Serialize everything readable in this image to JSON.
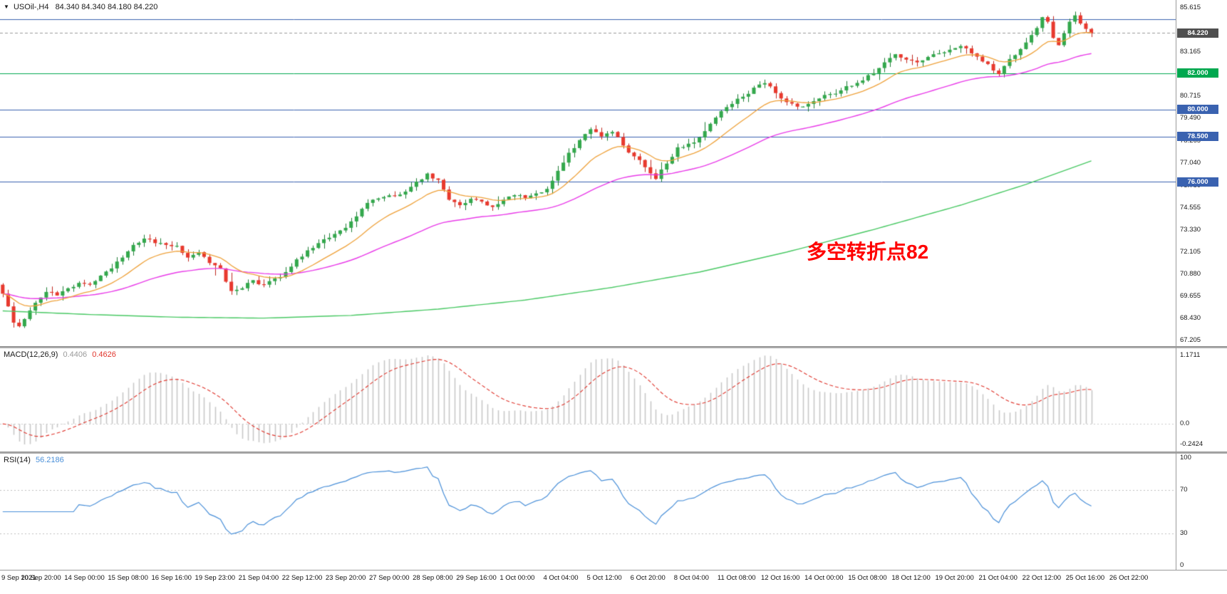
{
  "window": {
    "symbol_label": "USOil-,H4",
    "ohlc_label": "84.340 84.340 84.180 84.220"
  },
  "price_panel": {
    "annotation": {
      "text": "多空转折点82",
      "color": "#FF0000"
    },
    "axis": {
      "p_max": 86.05,
      "p_min": 66.9
    },
    "scale_ticks": [
      {
        "label": "85.615",
        "price": 85.615
      },
      {
        "label": "83.165",
        "price": 83.165
      },
      {
        "label": "80.715",
        "price": 80.715
      },
      {
        "label": "79.490",
        "price": 79.49
      },
      {
        "label": "78.265",
        "price": 78.265
      },
      {
        "label": "77.040",
        "price": 77.04
      },
      {
        "label": "75.780",
        "price": 75.78
      },
      {
        "label": "74.555",
        "price": 74.555
      },
      {
        "label": "73.330",
        "price": 73.33
      },
      {
        "label": "72.105",
        "price": 72.105
      },
      {
        "label": "70.880",
        "price": 70.88
      },
      {
        "label": "69.655",
        "price": 69.655
      },
      {
        "label": "68.430",
        "price": 68.43
      },
      {
        "label": "67.205",
        "price": 67.205
      }
    ],
    "badges": [
      {
        "label": "84.220",
        "price": 84.22,
        "bg": "#4f4f4f"
      },
      {
        "label": "82.000",
        "price": 82.0,
        "bg": "#00A84F"
      },
      {
        "label": "80.000",
        "price": 80.0,
        "bg": "#3A62B0"
      },
      {
        "label": "78.500",
        "price": 78.5,
        "bg": "#3A62B0"
      },
      {
        "label": "76.000",
        "price": 76.0,
        "bg": "#3A62B0"
      }
    ],
    "hlines": [
      {
        "price": 85.0,
        "color": "#3A62B0",
        "style": "solid"
      },
      {
        "price": 84.22,
        "color": "#999999",
        "style": "dash"
      },
      {
        "price": 82.0,
        "color": "#00A84F",
        "style": "solid"
      },
      {
        "price": 80.0,
        "color": "#3A62B0",
        "style": "solid"
      },
      {
        "price": 78.5,
        "color": "#3A62B0",
        "style": "solid"
      },
      {
        "price": 76.0,
        "color": "#3A62B0",
        "style": "solid"
      }
    ]
  },
  "macd_panel": {
    "name": "MACD(12,26,9)",
    "value_main": "0.4406",
    "value_signal": "0.4626",
    "scale_labels": {
      "max": "1.1711",
      "zero": "0.0",
      "min": "-0.2424"
    },
    "colors": {
      "hist": "#c8c8c8",
      "signal": "#e0352c",
      "zero_line": "#cccccc"
    }
  },
  "rsi_panel": {
    "name": "RSI(14)",
    "value": "56.2186",
    "levels": [
      70,
      30
    ],
    "scale_labels": [
      {
        "label": "100",
        "value": 100
      },
      {
        "label": "70",
        "value": 70
      },
      {
        "label": "30",
        "value": 30
      },
      {
        "label": "0",
        "value": 0
      }
    ],
    "colors": {
      "line": "#4a90d9",
      "level_line": "#c0c0c0"
    }
  },
  "time_axis": {
    "slot_step": 8,
    "labels": [
      "9 Sep 2021",
      "10 Sep 20:00",
      "14 Sep 00:00",
      "15 Sep 08:00",
      "16 Sep 16:00",
      "19 Sep 23:00",
      "21 Sep 04:00",
      "22 Sep 12:00",
      "23 Sep 20:00",
      "27 Sep 00:00",
      "28 Sep 08:00",
      "29 Sep 16:00",
      "1 Oct 00:00",
      "4 Oct 04:00",
      "5 Oct 12:00",
      "6 Oct 20:00",
      "8 Oct 04:00",
      "11 Oct 08:00",
      "12 Oct 16:00",
      "14 Oct 00:00",
      "15 Oct 08:00",
      "18 Oct 12:00",
      "19 Oct 20:00",
      "21 Oct 04:00",
      "22 Oct 12:00",
      "25 Oct 16:00",
      "26 Oct 22:00"
    ]
  },
  "chart_data": {
    "type": "candlestick",
    "symbol": "USOil-",
    "timeframe": "H4",
    "title": "USOil-,H4 84.340 84.340 84.180 84.220",
    "current_ohlc": {
      "open": 84.34,
      "high": 84.34,
      "low": 84.18,
      "close": 84.22
    },
    "bars": 201,
    "slots": 216,
    "y_range": [
      67.205,
      85.615
    ],
    "key_levels": [
      76.0,
      78.5,
      80.0,
      82.0,
      85.0
    ],
    "close_anchors": [
      [
        0,
        69.8
      ],
      [
        1,
        69.1
      ],
      [
        2,
        68.2
      ],
      [
        3,
        68.0
      ],
      [
        4,
        68.4
      ],
      [
        6,
        69.3
      ],
      [
        8,
        69.9
      ],
      [
        10,
        69.7
      ],
      [
        12,
        70.1
      ],
      [
        14,
        70.4
      ],
      [
        16,
        70.3
      ],
      [
        18,
        70.8
      ],
      [
        20,
        71.2
      ],
      [
        22,
        71.8
      ],
      [
        24,
        72.5
      ],
      [
        26,
        72.85
      ],
      [
        28,
        72.6
      ],
      [
        30,
        72.5
      ],
      [
        32,
        72.45
      ],
      [
        34,
        71.8
      ],
      [
        36,
        72.1
      ],
      [
        38,
        71.5
      ],
      [
        40,
        71.2
      ],
      [
        42,
        69.95
      ],
      [
        44,
        70.1
      ],
      [
        46,
        70.55
      ],
      [
        48,
        70.3
      ],
      [
        50,
        70.65
      ],
      [
        52,
        71.0
      ],
      [
        54,
        71.7
      ],
      [
        56,
        72.2
      ],
      [
        58,
        72.6
      ],
      [
        60,
        72.9
      ],
      [
        62,
        73.3
      ],
      [
        64,
        73.8
      ],
      [
        66,
        74.5
      ],
      [
        68,
        75.0
      ],
      [
        70,
        75.15
      ],
      [
        72,
        75.2
      ],
      [
        74,
        75.45
      ],
      [
        76,
        76.0
      ],
      [
        78,
        76.45
      ],
      [
        80,
        76.1
      ],
      [
        82,
        75.0
      ],
      [
        84,
        74.7
      ],
      [
        86,
        75.05
      ],
      [
        88,
        74.9
      ],
      [
        90,
        74.6
      ],
      [
        92,
        75.0
      ],
      [
        94,
        75.25
      ],
      [
        96,
        75.1
      ],
      [
        98,
        75.35
      ],
      [
        100,
        75.6
      ],
      [
        102,
        76.6
      ],
      [
        104,
        77.6
      ],
      [
        106,
        78.3
      ],
      [
        108,
        78.9
      ],
      [
        110,
        78.5
      ],
      [
        112,
        78.75
      ],
      [
        114,
        78.0
      ],
      [
        116,
        77.4
      ],
      [
        118,
        76.8
      ],
      [
        120,
        76.15
      ],
      [
        122,
        77.0
      ],
      [
        124,
        77.9
      ],
      [
        126,
        78.1
      ],
      [
        128,
        78.45
      ],
      [
        130,
        79.2
      ],
      [
        132,
        79.9
      ],
      [
        134,
        80.3
      ],
      [
        136,
        80.7
      ],
      [
        138,
        81.2
      ],
      [
        140,
        81.45
      ],
      [
        142,
        80.9
      ],
      [
        144,
        80.4
      ],
      [
        146,
        80.15
      ],
      [
        148,
        80.3
      ],
      [
        150,
        80.6
      ],
      [
        152,
        80.85
      ],
      [
        154,
        81.05
      ],
      [
        156,
        81.3
      ],
      [
        158,
        81.6
      ],
      [
        160,
        82.0
      ],
      [
        162,
        82.6
      ],
      [
        164,
        83.05
      ],
      [
        166,
        82.75
      ],
      [
        168,
        82.6
      ],
      [
        170,
        82.9
      ],
      [
        172,
        83.1
      ],
      [
        174,
        83.3
      ],
      [
        176,
        83.5
      ],
      [
        178,
        83.1
      ],
      [
        180,
        82.65
      ],
      [
        182,
        82.15
      ],
      [
        183,
        81.95
      ],
      [
        184,
        82.4
      ],
      [
        186,
        83.0
      ],
      [
        188,
        83.7
      ],
      [
        190,
        84.5
      ],
      [
        191,
        85.1
      ],
      [
        192,
        84.85
      ],
      [
        193,
        83.95
      ],
      [
        194,
        83.55
      ],
      [
        195,
        84.2
      ],
      [
        196,
        84.85
      ],
      [
        197,
        85.2
      ],
      [
        198,
        84.75
      ],
      [
        199,
        84.45
      ],
      [
        200,
        84.22
      ]
    ],
    "ma_green_anchors": [
      [
        0,
        68.85
      ],
      [
        16,
        68.65
      ],
      [
        32,
        68.5
      ],
      [
        48,
        68.45
      ],
      [
        64,
        68.6
      ],
      [
        80,
        68.95
      ],
      [
        96,
        69.45
      ],
      [
        112,
        70.15
      ],
      [
        128,
        71.0
      ],
      [
        144,
        72.1
      ],
      [
        160,
        73.35
      ],
      [
        176,
        74.7
      ],
      [
        188,
        75.85
      ],
      [
        200,
        77.15
      ]
    ],
    "ma_periods": {
      "orange": 13,
      "magenta": 44
    },
    "indicators": {
      "macd": [
        12,
        26,
        9
      ],
      "rsi": 14
    },
    "colors": {
      "up": "#33a84c",
      "up_dark": "#1e7e35",
      "down": "#e8392e",
      "down_dark": "#c0281f",
      "ma_orange": "#efa23b",
      "ma_magenta": "#e93ce9",
      "ma_green": "#49c964"
    }
  }
}
